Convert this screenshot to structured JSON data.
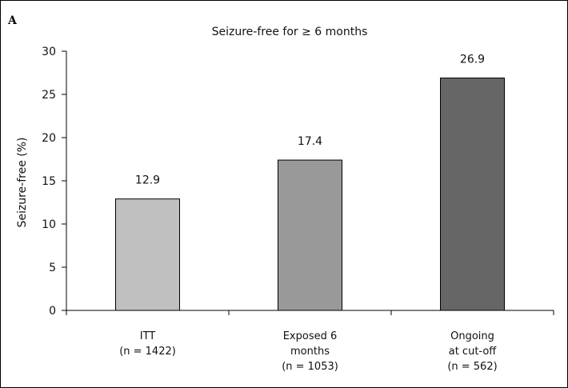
{
  "panel_label": "A",
  "chart_data": {
    "type": "bar",
    "title": "Seizure-free for ≥ 6 months",
    "ylabel": "Seizure-free (%)",
    "xlabel": "",
    "ylim": [
      0,
      30
    ],
    "yticks": [
      0,
      5,
      10,
      15,
      20,
      25,
      30
    ],
    "grid": false,
    "categories": [
      [
        "ITT",
        "(n = 1422)"
      ],
      [
        "Exposed 6",
        "months",
        "(n = 1053)"
      ],
      [
        "Ongoing",
        "at cut-off",
        "(n = 562)"
      ]
    ],
    "values": [
      12.9,
      17.4,
      26.9
    ],
    "value_labels": [
      "12.9",
      "17.4",
      "26.9"
    ],
    "colors": [
      "#c0c0c0",
      "#999999",
      "#666666"
    ]
  }
}
